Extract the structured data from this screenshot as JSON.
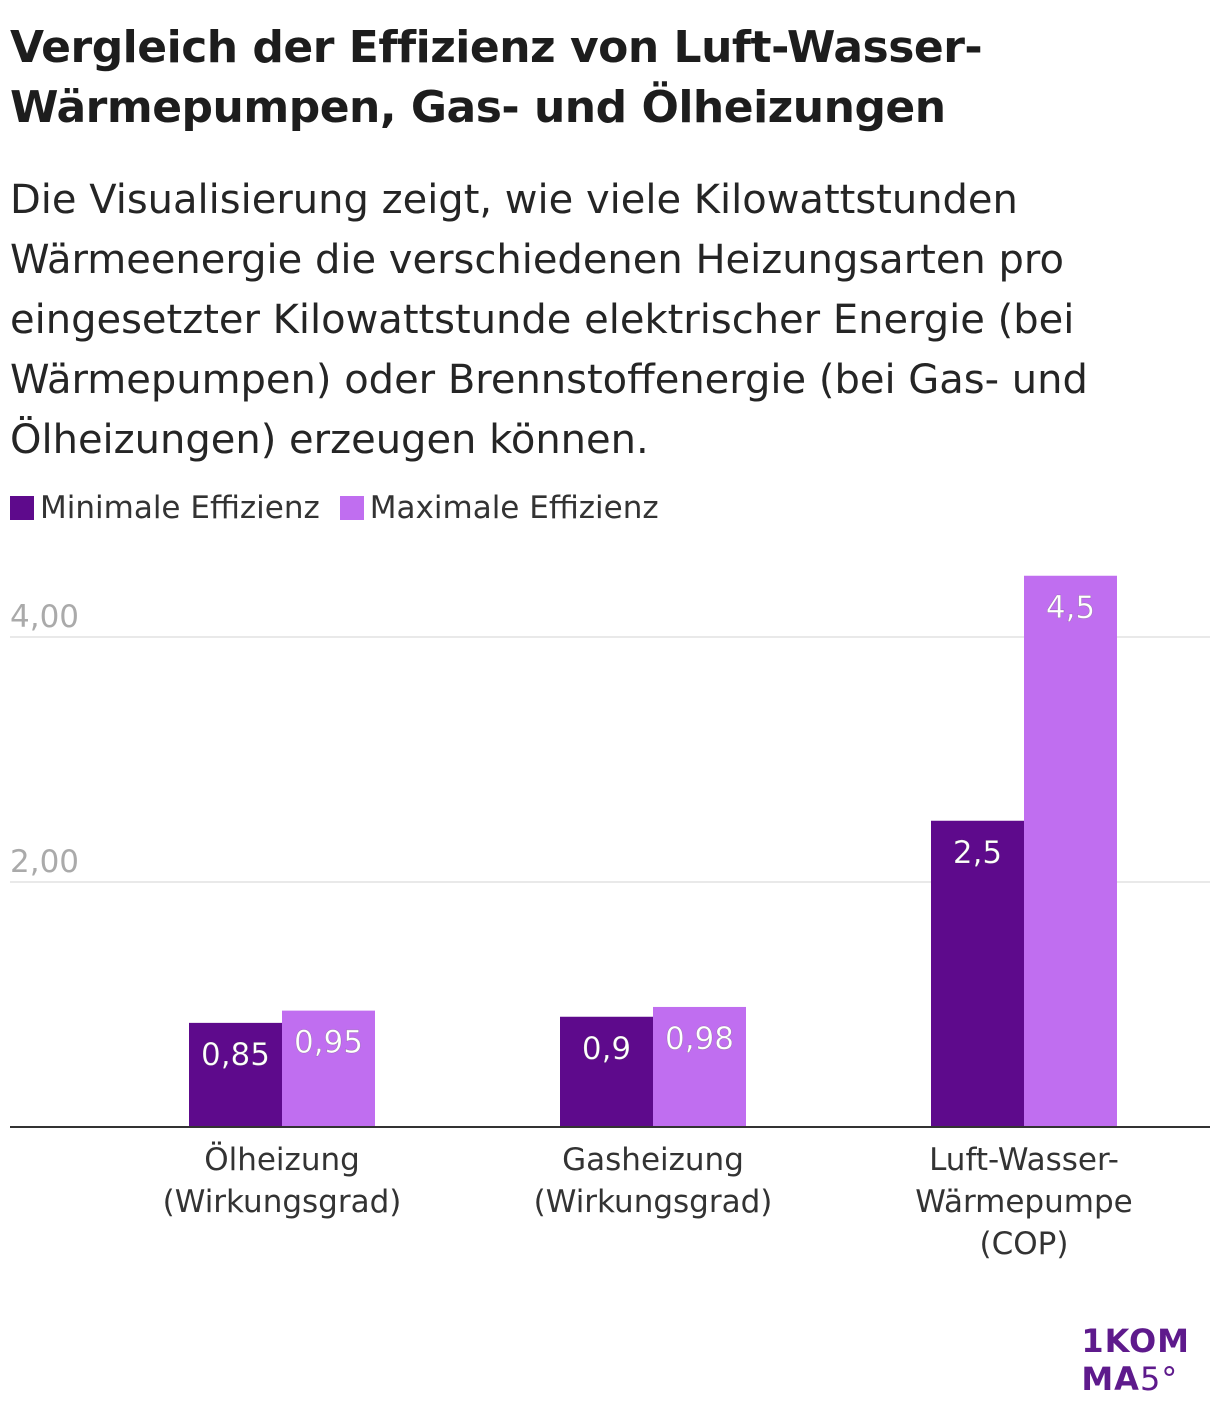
{
  "title": "Vergleich der Effizienz von Luft-Wasser-Wärmepumpen, Gas- und Ölheizungen",
  "subtitle": "Die Visualisierung zeigt, wie viele Kilowattstunden Wärmeenergie die verschiedenen Heizungsarten pro eingesetzter Kilowattstunde elektrischer Energie (bei Wärmepumpen) oder Brennstoffenergie (bei Gas- und Ölheizungen) erzeugen können.",
  "legend": [
    {
      "label": "Minimale Effizienz",
      "color": "#5e0a8c"
    },
    {
      "label": "Maximale Effizienz",
      "color": "#c06ef0"
    }
  ],
  "logo": {
    "line1": "1KOM",
    "line2a": "MA",
    "line2b": "5°"
  },
  "chart_data": {
    "type": "bar",
    "categories": [
      [
        "Ölheizung",
        "(Wirkungsgrad)"
      ],
      [
        "Gasheizung",
        "(Wirkungsgrad)"
      ],
      [
        "Luft-Wasser-",
        "Wärmepumpe",
        "(COP)"
      ]
    ],
    "series": [
      {
        "name": "Minimale Effizienz",
        "color": "#5e0a8c",
        "values": [
          0.85,
          0.9,
          2.5
        ],
        "labels": [
          "0,85",
          "0,9",
          "2,5"
        ]
      },
      {
        "name": "Maximale Effizienz",
        "color": "#c06ef0",
        "values": [
          0.95,
          0.98,
          4.5
        ],
        "labels": [
          "0,95",
          "0,98",
          "4,5"
        ]
      }
    ],
    "yticks": [
      {
        "value": 2,
        "label": "2,00"
      },
      {
        "value": 4,
        "label": "4,00"
      }
    ],
    "ylim": [
      0,
      4.5
    ],
    "grid": true,
    "legend_position": "top-left"
  }
}
